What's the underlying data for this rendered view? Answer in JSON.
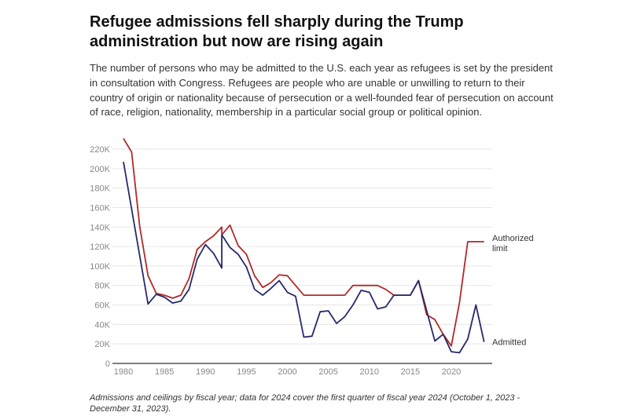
{
  "title": "Refugee admissions fell sharply during the Trump administration but now are rising again",
  "subtitle": "The number of persons who may be admitted to the U.S. each year as refugees is set by the president in consultation with Congress. Refugees are people who are unable or unwilling to return to their country of origin or nationality because of persecution or a well-founded fear of persecution on account of race, religion, nationality, membership in a particular social group or political opinion.",
  "caption": "Admissions and ceilings by fiscal year; data for 2024 cover the first quarter of fiscal year 2024 (October 1, 2023 - December 31, 2023).",
  "chart_data": {
    "type": "line",
    "title": "Refugee admissions fell sharply during the Trump administration but now are rising again",
    "xlabel": "",
    "ylabel": "",
    "xlim": [
      1980,
      2024
    ],
    "ylim": [
      0,
      220000
    ],
    "grid": true,
    "legend": "inline-right",
    "x_ticks": [
      1980,
      1985,
      1990,
      1995,
      2000,
      2005,
      2010,
      2015,
      2020
    ],
    "y_ticks": [
      0,
      20000,
      40000,
      60000,
      80000,
      100000,
      120000,
      140000,
      160000,
      180000,
      200000,
      220000
    ],
    "y_tick_labels": [
      "0",
      "20K",
      "40K",
      "60K",
      "80K",
      "100K",
      "120K",
      "140K",
      "160K",
      "180K",
      "200K",
      "220K"
    ],
    "series": [
      {
        "name": "Authorized limit",
        "label_lines": [
          "Authorized",
          "limit"
        ],
        "color": "#b22a2a",
        "x": [
          1980,
          1981,
          1982,
          1983,
          1984,
          1985,
          1986,
          1987,
          1988,
          1989,
          1990,
          1991,
          1992,
          1992,
          1993,
          1994,
          1995,
          1996,
          1997,
          1998,
          1999,
          2000,
          2001,
          2002,
          2003,
          2004,
          2005,
          2006,
          2007,
          2008,
          2009,
          2010,
          2011,
          2012,
          2013,
          2014,
          2015,
          2016,
          2017,
          2018,
          2019,
          2020,
          2021,
          2022,
          2023,
          2024
        ],
        "values": [
          231000,
          217000,
          140000,
          90000,
          72000,
          70000,
          67000,
          70000,
          87000,
          117000,
          125000,
          131000,
          140000,
          132000,
          142000,
          121000,
          112000,
          90000,
          78000,
          83000,
          91000,
          90000,
          80000,
          70000,
          70000,
          70000,
          70000,
          70000,
          70000,
          80000,
          80000,
          80000,
          80000,
          76000,
          70000,
          70000,
          70000,
          85000,
          50000,
          45000,
          30000,
          18000,
          62500,
          125000,
          125000,
          125000
        ]
      },
      {
        "name": "Admitted",
        "label_lines": [
          "Admitted"
        ],
        "color": "#262a6b",
        "x": [
          1980,
          1983,
          1984,
          1985,
          1986,
          1987,
          1988,
          1989,
          1990,
          1991,
          1992,
          1992,
          1993,
          1994,
          1995,
          1996,
          1997,
          1998,
          1999,
          2000,
          2001,
          2002,
          2003,
          2004,
          2005,
          2006,
          2007,
          2008,
          2009,
          2010,
          2011,
          2012,
          2013,
          2014,
          2015,
          2016,
          2017,
          2018,
          2019,
          2020,
          2021,
          2022,
          2023,
          2024
        ],
        "values": [
          207000,
          61000,
          71000,
          68000,
          62000,
          64000,
          76000,
          107000,
          122000,
          113000,
          98000,
          132000,
          119000,
          112000,
          99000,
          76000,
          70000,
          77000,
          85000,
          73000,
          69000,
          27000,
          28000,
          53000,
          54000,
          41000,
          48000,
          60000,
          75000,
          73000,
          56000,
          58000,
          70000,
          70000,
          70000,
          85000,
          54000,
          23000,
          30000,
          12000,
          11000,
          25000,
          60000,
          22000
        ]
      }
    ]
  }
}
